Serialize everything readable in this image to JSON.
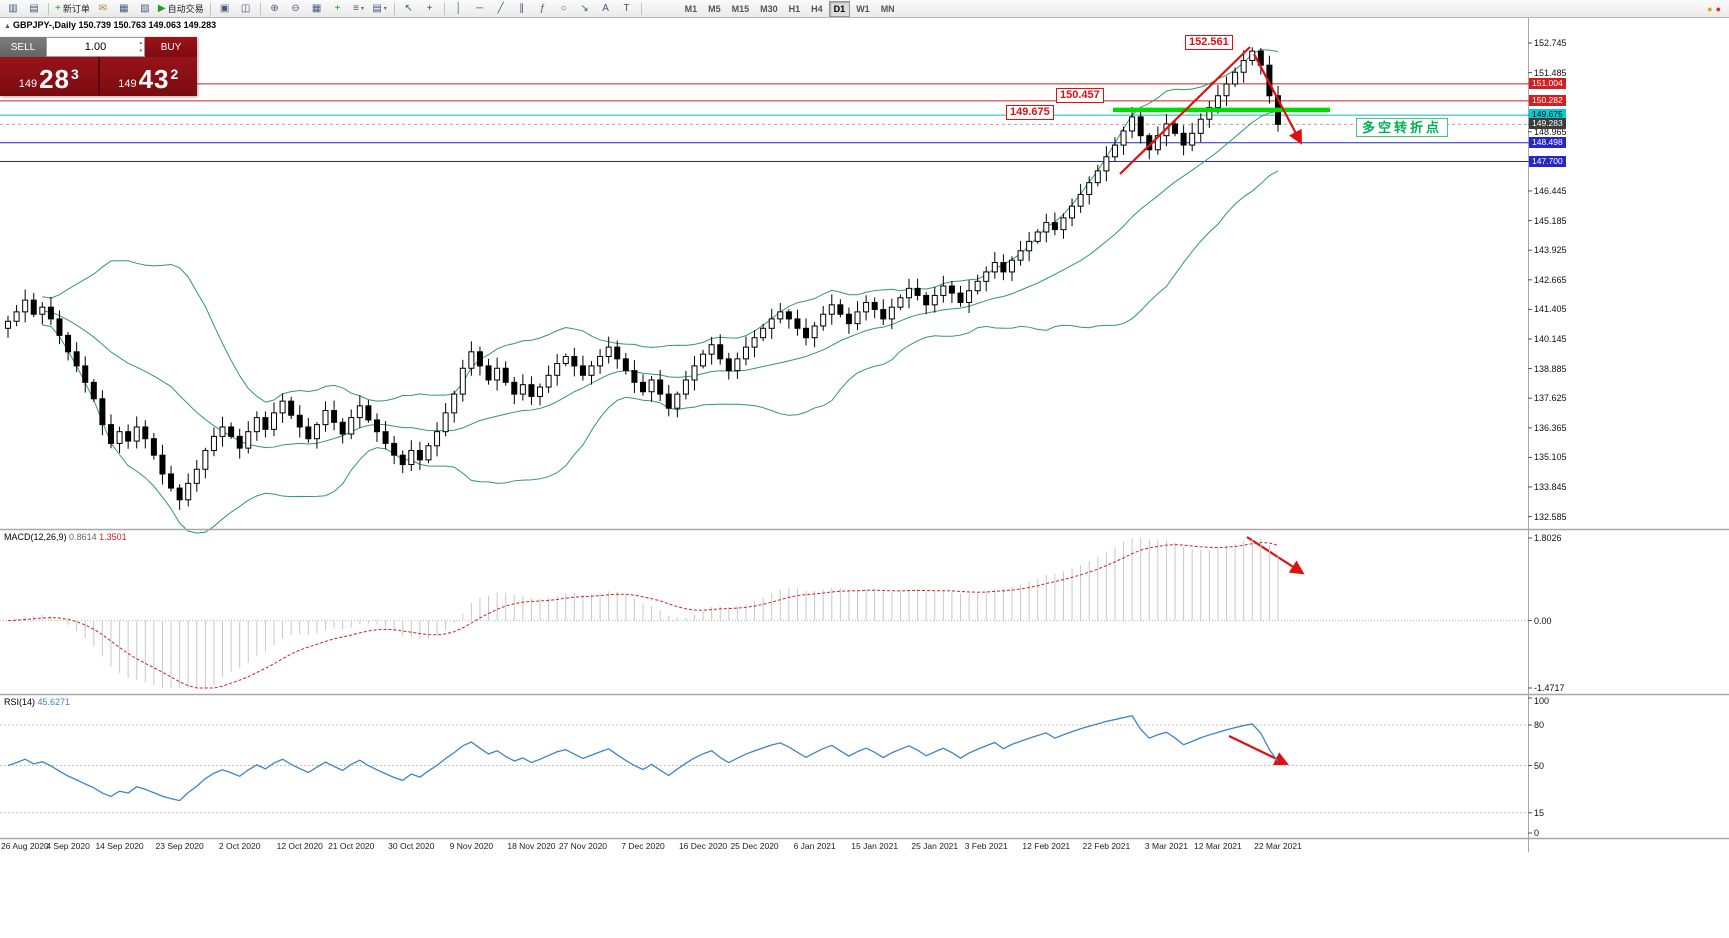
{
  "toolbar": {
    "items": [
      {
        "name": "new-chart-icon",
        "glyph": "▥"
      },
      {
        "name": "chart-profiles-icon",
        "glyph": "▤"
      },
      {
        "sep": true
      },
      {
        "name": "new-order-button",
        "glyph": "+",
        "color": "#1d9e1d",
        "label": "新订单"
      },
      {
        "name": "mail-icon",
        "glyph": "✉",
        "color": "#a88d2f"
      },
      {
        "name": "market-watch-icon",
        "glyph": "▦"
      },
      {
        "name": "data-window-icon",
        "glyph": "▧"
      },
      {
        "name": "auto-trading-button",
        "glyph": "▶",
        "color": "#1d9e1d",
        "label": "自动交易"
      },
      {
        "sep": true
      },
      {
        "name": "cascade-windows-icon",
        "glyph": "▣"
      },
      {
        "name": "tile-windows-icon",
        "glyph": "◫"
      },
      {
        "sep": true
      },
      {
        "name": "zoom-in-icon",
        "glyph": "⊕"
      },
      {
        "name": "zoom-out-icon",
        "glyph": "⊖"
      },
      {
        "name": "tile-grid-icon",
        "glyph": "▦"
      },
      {
        "name": "indicators-icon",
        "glyph": "+",
        "color": "#1d9e1d"
      },
      {
        "name": "periods-icon",
        "glyph": "≡",
        "caret": true
      },
      {
        "name": "templates-icon",
        "glyph": "▤",
        "caret": true
      },
      {
        "sep": true
      },
      {
        "name": "cursor-icon",
        "glyph": "↖"
      },
      {
        "name": "crosshair-icon",
        "glyph": "+"
      },
      {
        "sep": true
      },
      {
        "name": "vertical-line-icon",
        "glyph": "│"
      },
      {
        "name": "horizontal-line-icon",
        "glyph": "─"
      },
      {
        "name": "trendline-icon",
        "glyph": "╱"
      },
      {
        "name": "channel-icon",
        "glyph": "∥"
      },
      {
        "name": "fibonacci-icon",
        "glyph": "ƒ"
      },
      {
        "name": "shapes-icon",
        "glyph": "○"
      },
      {
        "name": "arrow-object-icon",
        "glyph": "↘"
      },
      {
        "name": "text-icon",
        "glyph": "A"
      },
      {
        "name": "text-label-icon",
        "glyph": "T"
      },
      {
        "sep": true
      }
    ],
    "timeframes": {
      "options": [
        "M1",
        "M5",
        "M15",
        "M30",
        "H1",
        "H4",
        "D1",
        "W1",
        "MN"
      ],
      "active": "D1"
    },
    "right_icons": [
      {
        "name": "alert-status-icon",
        "glyph": "●",
        "color": "#f0a020"
      },
      {
        "name": "connection-status-icon",
        "glyph": "●",
        "color": "#d43030"
      }
    ]
  },
  "symbol_bar": {
    "text": "GBPJPY-,Daily  150.739 150.763 149.063 149.283"
  },
  "trade_panel": {
    "sell_label": "SELL",
    "buy_label": "BUY",
    "volume": "1.00",
    "sell_prefix": "149",
    "sell_pips": "28",
    "sell_sup": "3",
    "buy_prefix": "149",
    "buy_pips": "43",
    "buy_sup": "2"
  },
  "annotations": {
    "peak": "152.561",
    "resistance": "150.457",
    "support": "149.675",
    "turning_point": "多空转折点"
  },
  "price_axis": {
    "ticks": [
      "152.745",
      "151.485",
      "148.965",
      "146.445",
      "145.185",
      "143.925",
      "142.665",
      "141.405",
      "140.145",
      "138.885",
      "137.625",
      "136.365",
      "135.105",
      "133.845",
      "132.585"
    ]
  },
  "indicators": {
    "macd": {
      "label": "MACD(12,26,9)",
      "value_main": "0.8614",
      "value_signal": "1.3501",
      "axis": [
        "1.8026",
        "0.00",
        "-1.4717"
      ]
    },
    "rsi": {
      "label": "RSI(14)",
      "value": "45.6271",
      "axis": [
        "100",
        "80",
        "50",
        "15",
        "0"
      ],
      "levels": [
        80,
        50,
        15
      ]
    }
  },
  "dates": [
    "26 Aug 2020",
    "4 Sep 2020",
    "14 Sep 2020",
    "23 Sep 2020",
    "2 Oct 2020",
    "12 Oct 2020",
    "21 Oct 2020",
    "30 Oct 2020",
    "9 Nov 2020",
    "18 Nov 2020",
    "27 Nov 2020",
    "7 Dec 2020",
    "16 Dec 2020",
    "25 Dec 2020",
    "6 Jan 2021",
    "15 Jan 2021",
    "25 Jan 2021",
    "3 Feb 2021",
    "12 Feb 2021",
    "22 Feb 2021",
    "3 Mar 2021",
    "12 Mar 2021",
    "22 Mar 2021"
  ],
  "chart_data": {
    "type": "candlestick",
    "symbol": "GBPJPY-",
    "timeframe": "Daily",
    "quote": {
      "open": "150.739",
      "high": "150.763",
      "low": "149.063",
      "close": "149.283"
    },
    "first_open": 140.6,
    "closes": [
      140.9,
      141.3,
      141.8,
      141.2,
      141.5,
      141.0,
      140.3,
      139.6,
      139.0,
      138.3,
      137.6,
      136.5,
      135.7,
      136.2,
      135.8,
      136.4,
      135.9,
      135.2,
      134.4,
      133.8,
      133.3,
      134.0,
      134.6,
      135.4,
      136.0,
      136.4,
      136.0,
      135.5,
      136.2,
      136.8,
      136.3,
      137.0,
      137.5,
      136.9,
      136.4,
      135.9,
      136.5,
      137.1,
      136.6,
      136.1,
      136.8,
      137.3,
      136.7,
      136.2,
      135.7,
      135.2,
      134.8,
      135.4,
      135.0,
      135.6,
      136.2,
      137.0,
      137.8,
      138.9,
      139.6,
      139.0,
      138.4,
      138.9,
      138.3,
      137.8,
      138.2,
      137.7,
      138.1,
      138.6,
      139.1,
      139.4,
      139.0,
      138.6,
      139.0,
      139.4,
      139.8,
      139.3,
      138.8,
      138.3,
      137.9,
      138.4,
      137.8,
      137.2,
      137.8,
      138.4,
      139.0,
      139.5,
      139.9,
      139.3,
      138.8,
      139.3,
      139.8,
      140.2,
      140.6,
      141.0,
      141.3,
      141.0,
      140.6,
      140.2,
      140.7,
      141.2,
      141.6,
      141.2,
      140.8,
      141.3,
      141.7,
      141.4,
      141.0,
      141.5,
      141.9,
      142.3,
      142.0,
      141.6,
      142.0,
      142.4,
      142.1,
      141.7,
      142.2,
      142.6,
      143.0,
      143.4,
      143.0,
      143.5,
      143.9,
      144.3,
      144.7,
      145.1,
      144.8,
      145.3,
      145.8,
      146.3,
      146.8,
      147.3,
      147.9,
      148.4,
      149.0,
      149.6,
      148.8,
      148.2,
      148.8,
      149.3,
      148.9,
      148.4,
      148.9,
      149.5,
      150.0,
      150.5,
      151.0,
      151.5,
      152.0,
      152.4,
      151.8,
      150.5,
      149.283
    ],
    "bollinger": {
      "period": 20,
      "deviation": 2
    },
    "bands_color": "#339966",
    "macd_signal_color": "#d02020",
    "rsi_color": "#3f83c9",
    "arrow_color": "#e01010",
    "highlight": {
      "price": 149.9,
      "color": "#00dc00"
    },
    "levels": [
      {
        "price": 151.004,
        "color": "#d02020",
        "style": "solid",
        "badge_bg": "#d02020",
        "badge_fg": "#ffffff"
      },
      {
        "price": 150.282,
        "color": "#d02020",
        "style": "solid",
        "badge_bg": "#d02020",
        "badge_fg": "#ffffff"
      },
      {
        "price": 149.675,
        "color": "#00bfc6",
        "style": "solid",
        "badge_bg": "#00cdd4",
        "badge_fg": "#000000"
      },
      {
        "price": 149.283,
        "color": "#a8a8a8",
        "style": "dash",
        "badge_bg": "#3c3c3c",
        "badge_fg": "#ffffff"
      },
      {
        "price": 148.498,
        "color": "#2626c9",
        "style": "solid",
        "badge_bg": "#2626c9",
        "badge_fg": "#ffffff"
      },
      {
        "price": 147.7,
        "color": "#2626c9",
        "style": "solid",
        "badge_bg": "#2626c9",
        "badge_fg": "#ffffff"
      }
    ]
  }
}
